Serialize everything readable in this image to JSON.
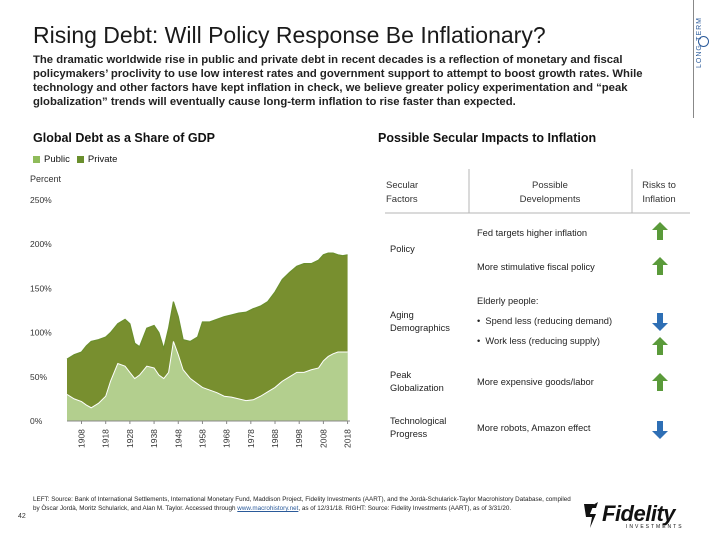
{
  "header": {
    "title": "Rising Debt: Will Policy Response Be Inflationary?",
    "intro": "The dramatic worldwide rise in public and private debt in recent decades is a reflection of monetary and fiscal policymakers’ proclivity to use low interest rates and government support to attempt to boost growth rates. While technology and other factors have kept inflation in check, we believe greater policy experimentation and “peak globalization” trends will eventually cause long-term inflation to rise faster than expected.",
    "side_tab": "LONG-TERM"
  },
  "colors": {
    "public": "#79a543",
    "private": "#7b9a3a",
    "public_fill": "#b3cf8e",
    "private_fill": "#788f2f",
    "arrow_up": "#5a9a3a",
    "arrow_down": "#2e6fb5",
    "brand_blue": "#2a5a9a"
  },
  "chart_data": {
    "type": "area",
    "title": "Global Debt as a Share of GDP",
    "ylabel": "Percent",
    "ylim": [
      0,
      250
    ],
    "yticks": [
      "0%",
      "50%",
      "100%",
      "150%",
      "200%",
      "250%"
    ],
    "xticks": [
      "1908",
      "1918",
      "1928",
      "1938",
      "1948",
      "1958",
      "1968",
      "1978",
      "1988",
      "1998",
      "2008",
      "2018"
    ],
    "legend": [
      {
        "name": "Public"
      },
      {
        "name": "Private"
      }
    ],
    "x": [
      1902,
      1905,
      1908,
      1910,
      1912,
      1915,
      1918,
      1920,
      1923,
      1926,
      1928,
      1930,
      1932,
      1935,
      1938,
      1940,
      1942,
      1944,
      1946,
      1948,
      1950,
      1953,
      1956,
      1958,
      1961,
      1964,
      1967,
      1970,
      1973,
      1976,
      1979,
      1982,
      1985,
      1988,
      1991,
      1994,
      1997,
      2000,
      2003,
      2006,
      2008,
      2010,
      2012,
      2014,
      2016,
      2018
    ],
    "series": [
      {
        "name": "Public",
        "values": [
          30,
          25,
          22,
          18,
          15,
          20,
          28,
          45,
          65,
          62,
          55,
          48,
          52,
          62,
          60,
          52,
          48,
          55,
          90,
          75,
          58,
          48,
          42,
          38,
          35,
          32,
          28,
          27,
          25,
          23,
          24,
          28,
          33,
          38,
          45,
          50,
          55,
          55,
          58,
          60,
          68,
          73,
          76,
          78,
          78,
          78
        ]
      },
      {
        "name": "Private",
        "values": [
          70,
          75,
          78,
          85,
          90,
          92,
          95,
          100,
          110,
          115,
          110,
          88,
          84,
          105,
          108,
          100,
          82,
          105,
          135,
          118,
          92,
          90,
          95,
          112,
          112,
          115,
          118,
          120,
          122,
          123,
          127,
          130,
          135,
          146,
          160,
          168,
          175,
          178,
          178,
          182,
          188,
          190,
          190,
          188,
          187,
          188
        ]
      }
    ]
  },
  "impacts": {
    "title": "Possible Secular Impacts to Inflation",
    "col_factors": "Secular Factors",
    "col_developments": "Possible Developments",
    "col_risks": "Risks to Inflation",
    "policy": {
      "factor": "Policy",
      "dev1": "Fed targets higher inflation",
      "dev2": "More stimulative fiscal policy"
    },
    "aging": {
      "factor": "Aging Demographics",
      "dev_head": "Elderly people:",
      "dev1": "Spend less (reducing demand)",
      "dev2": "Work less (reducing supply)"
    },
    "peak": {
      "factor": "Peak Globalization",
      "dev": "More expensive goods/labor"
    },
    "tech": {
      "factor": "Technological Progress",
      "dev": "More robots, Amazon effect"
    }
  },
  "footer": {
    "text": "LEFT: Source: Bank of International Settlements, International Monetary Fund, Maddison Project, Fidelity Investments (AART), and the Jordà-Schularick-Taylor Macrohistory Database, compiled by Òscar Jordà, Moritz Schularick, and Alan M. Taylor. Accessed through",
    "link": "www.macrohistory.net",
    "tail": "as of 12/31/18. RIGHT: Source: Fidelity Investments (AART), as of 3/31/20.",
    "page": "42",
    "logo_text": "Fidelity",
    "logo_sub": "INVESTMENTS"
  }
}
